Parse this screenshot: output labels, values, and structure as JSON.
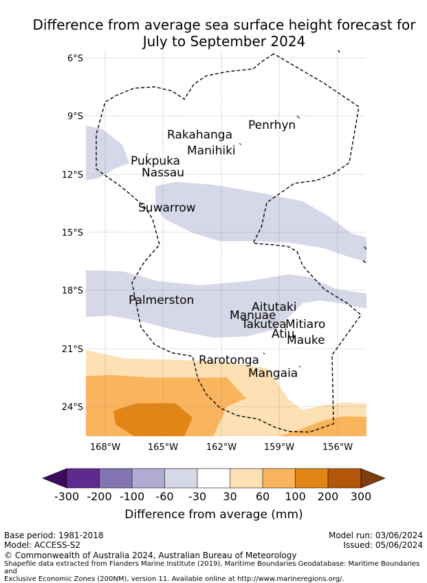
{
  "title": {
    "line1": "Difference from average sea surface height forecast for",
    "line2": "July to September 2024"
  },
  "map": {
    "lat_ticks": [
      "6°S",
      "9°S",
      "12°S",
      "15°S",
      "18°S",
      "21°S",
      "24°S"
    ],
    "lon_ticks": [
      "168°W",
      "165°W",
      "162°W",
      "159°W",
      "156°W"
    ],
    "places": [
      {
        "name": "Penrhyn"
      },
      {
        "name": "Rakahanga"
      },
      {
        "name": "Manihiki"
      },
      {
        "name": "Pukpuka"
      },
      {
        "name": "Nassau"
      },
      {
        "name": "Suwarrow"
      },
      {
        "name": "Palmerston"
      },
      {
        "name": "Aitutaki"
      },
      {
        "name": "Manuae"
      },
      {
        "name": "Takutea"
      },
      {
        "name": "Mitiaro"
      },
      {
        "name": "Atiu"
      },
      {
        "name": "Mauke"
      },
      {
        "name": "Rarotonga"
      },
      {
        "name": "Mangaia"
      }
    ],
    "colors": {
      "neg_light": "#d6d7e8",
      "pos_light": "#fde0b4",
      "pos_mid": "#fbb45e",
      "pos_dark": "#e28516"
    }
  },
  "legend": {
    "label": "Difference from average (mm)",
    "ticks": [
      "-300",
      "-200",
      "-100",
      "-60",
      "-30",
      "30",
      "60",
      "100",
      "200",
      "300"
    ],
    "colors": [
      "#3e0a5b",
      "#5e2a8e",
      "#8574b2",
      "#b1aad3",
      "#d6d7e8",
      "#ffffff",
      "#fde0b4",
      "#fbb45e",
      "#e28516",
      "#b45608",
      "#7f3c0c"
    ]
  },
  "footer": {
    "base_period": "Base period: 1981-2018",
    "model": "Model: ACCESS-S2",
    "model_run": "Model run: 03/06/2024",
    "issued": "Issued: 05/06/2024",
    "copyright": "© Commonwealth of Australia 2024, Australian Bureau of Meteorology",
    "shapefile_1": "Shapefile data extracted from Flanders Marine Institute (2019), Maritime Boundaries Geodatabase: Maritime Boundaries and",
    "shapefile_2": "Exclusive Economic Zones (200NM), version 11. Available online at http://www.marineregions.org/."
  }
}
